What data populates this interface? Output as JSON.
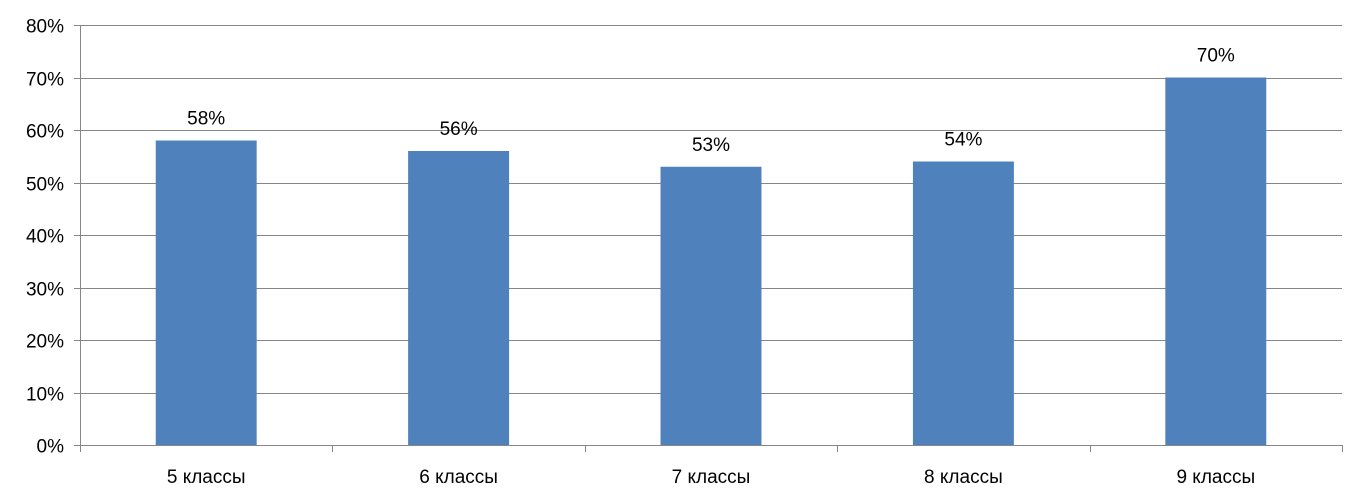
{
  "chart_data": {
    "type": "bar",
    "categories": [
      "5 классы",
      "6 классы",
      "7 классы",
      "8 классы",
      "9 классы"
    ],
    "values": [
      58,
      56,
      53,
      54,
      70
    ],
    "data_labels": [
      "58%",
      "56%",
      "53%",
      "54%",
      "70%"
    ],
    "title": "",
    "xlabel": "",
    "ylabel": "",
    "ylim": [
      0,
      80
    ],
    "y_ticks": [
      0,
      10,
      20,
      30,
      40,
      50,
      60,
      70,
      80
    ],
    "y_tick_labels": [
      "0%",
      "10%",
      "20%",
      "30%",
      "40%",
      "50%",
      "60%",
      "70%",
      "80%"
    ],
    "grid": true,
    "legend": "none"
  },
  "colors": {
    "bar": "#4F81BD",
    "grid": "#868686",
    "axis": "#868686",
    "text": "#000000"
  }
}
